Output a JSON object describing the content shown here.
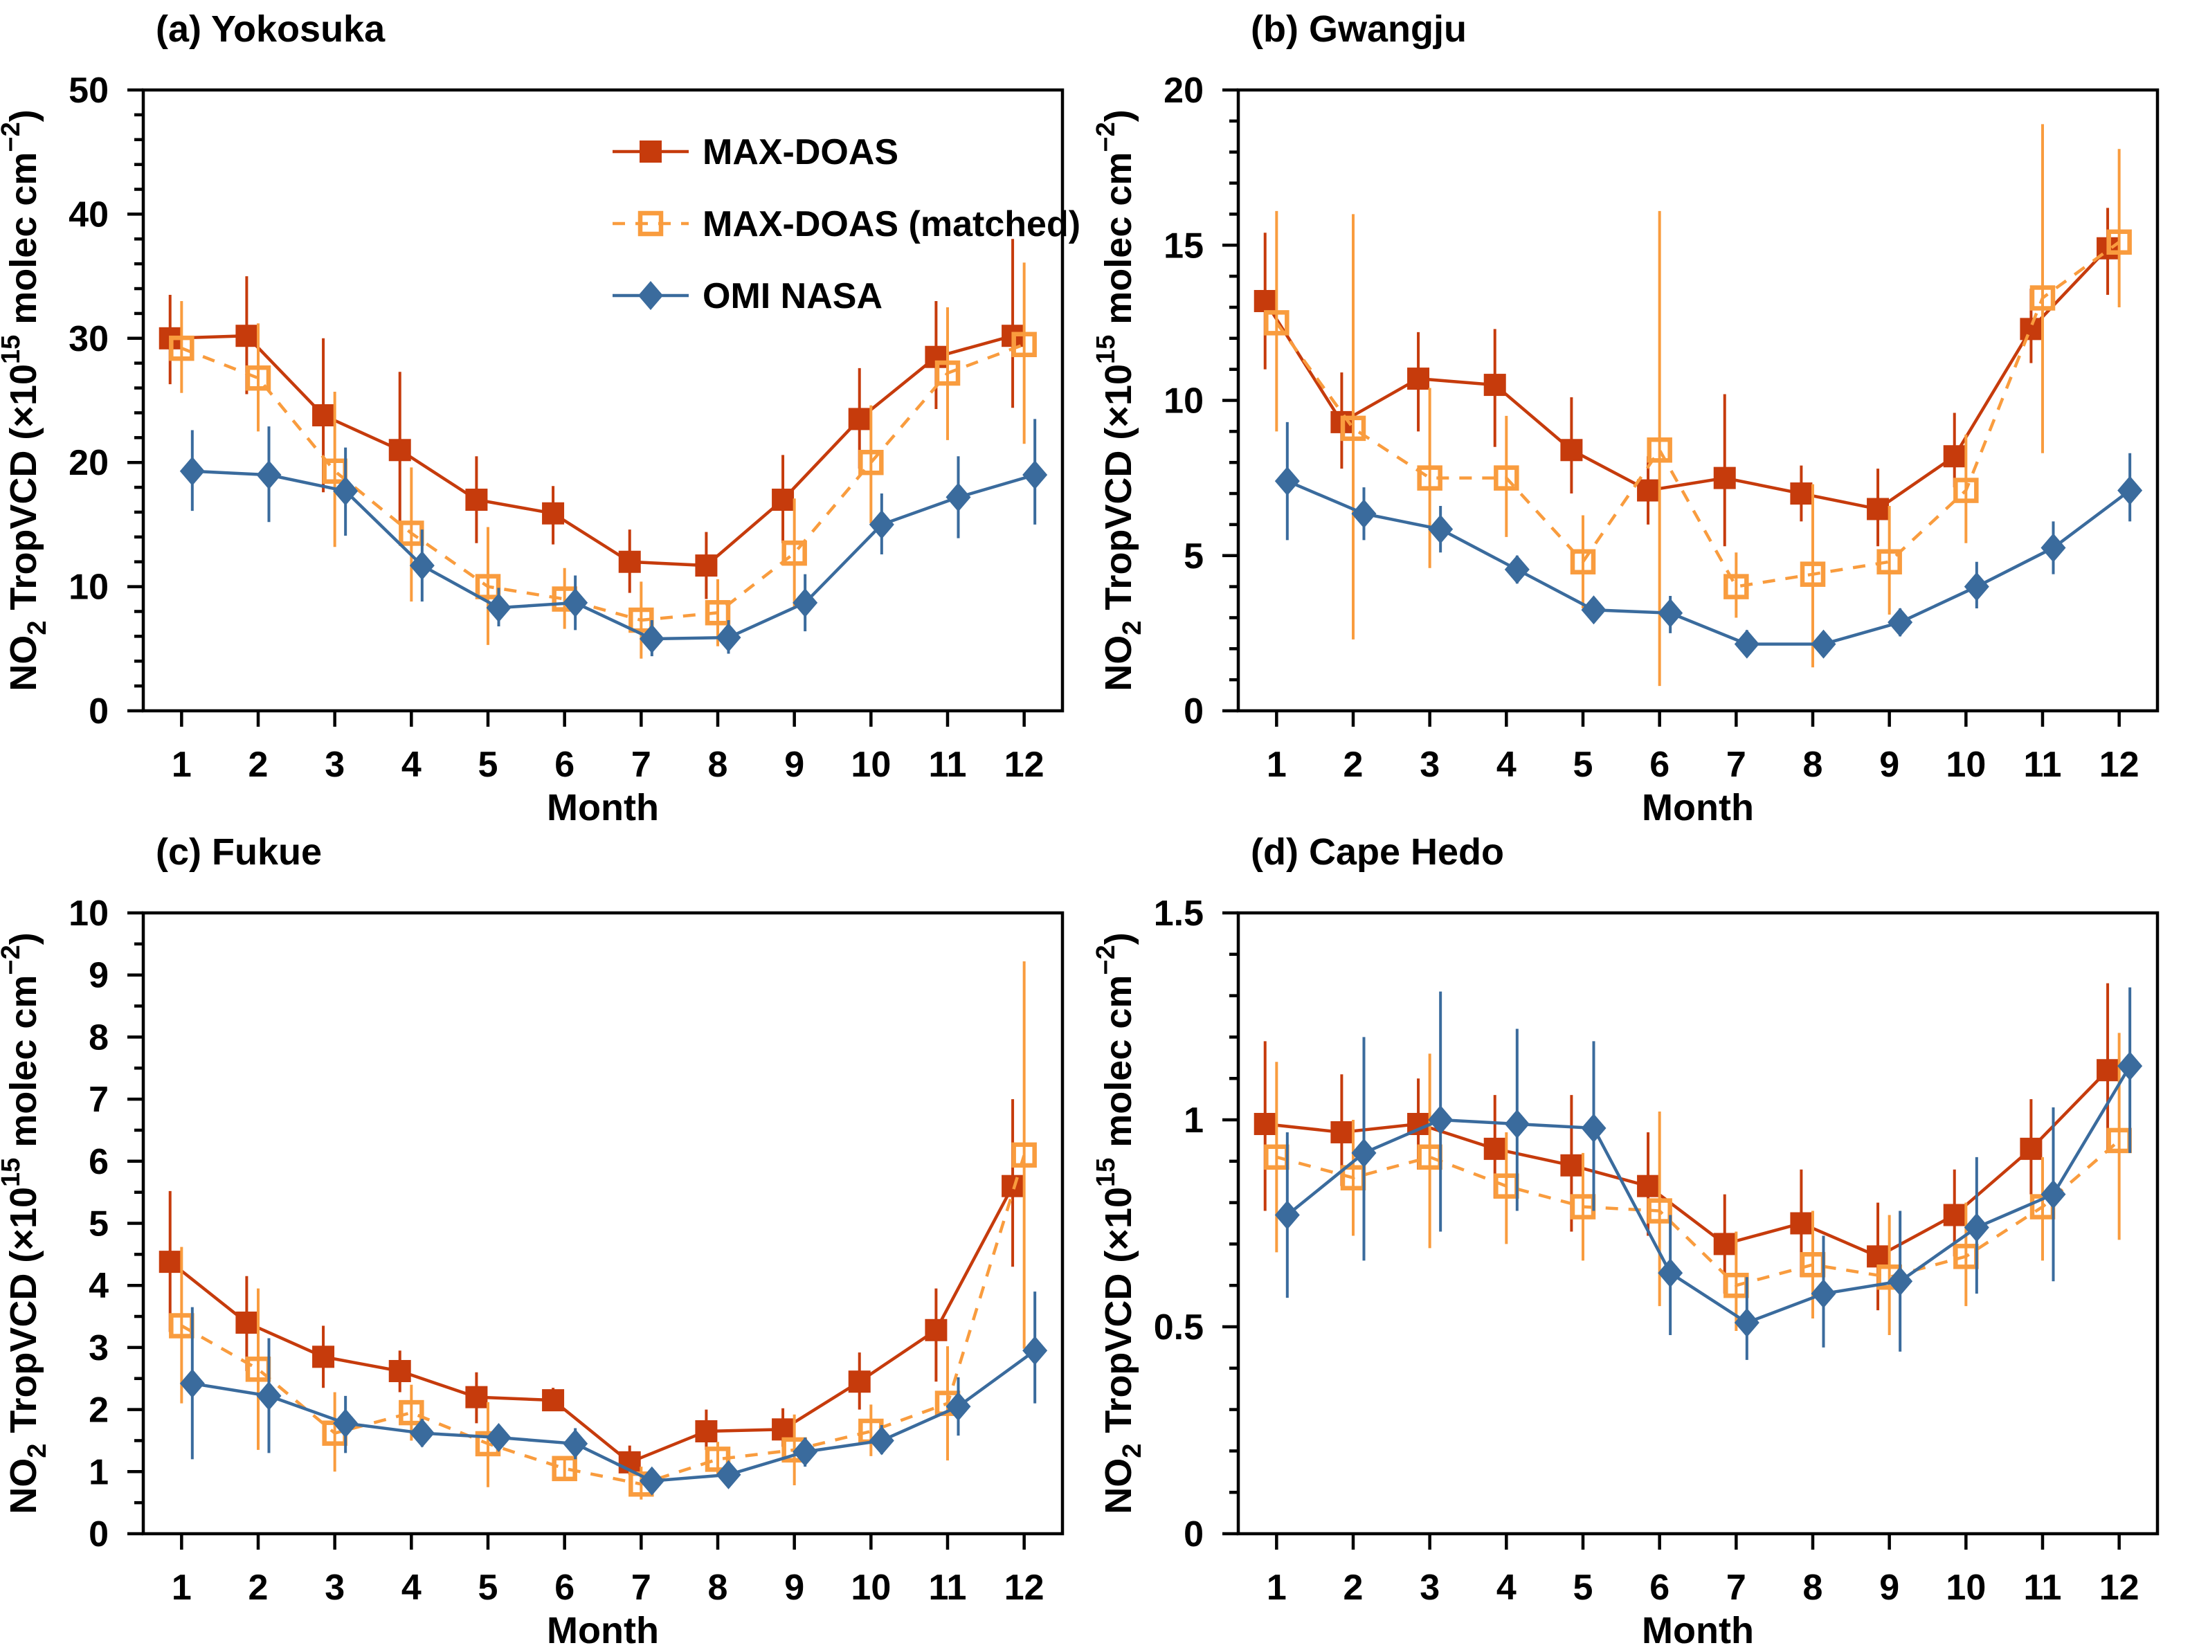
{
  "figure": {
    "xlabel": "Month",
    "ylabel_parts": [
      {
        "t": "NO"
      },
      {
        "t": "2",
        "s": "sub"
      },
      {
        "t": " TropVCD (×10",
        "s": ""
      },
      {
        "t": "15",
        "s": "sup"
      },
      {
        "t": " molec cm",
        "s": ""
      },
      {
        "t": "−2",
        "s": "sup"
      },
      {
        "t": ")",
        "s": ""
      }
    ]
  },
  "legend": {
    "items": [
      "MAX-DOAS",
      "MAX-DOAS (matched)",
      "OMI NASA"
    ]
  },
  "chart_data": {
    "type": "line",
    "x": [
      1,
      2,
      3,
      4,
      5,
      6,
      7,
      8,
      9,
      10,
      11,
      12
    ],
    "xlabel": "Month",
    "ylabel": "NO2 TropVCD (x10^15 molec cm^-2)",
    "legend_position": "top-left-inside-panel-a",
    "grid": false,
    "series_defs": [
      {
        "name": "MAX-DOAS",
        "color": "#c63b0c",
        "marker": "square-filled",
        "line": "solid",
        "offset": -0.15
      },
      {
        "name": "MAX-DOAS (matched)",
        "color": "#f99c3e",
        "marker": "square-open",
        "line": "dashed",
        "offset": 0
      },
      {
        "name": "OMI NASA",
        "color": "#3a6b9d",
        "marker": "diamond-filled",
        "line": "solid",
        "offset": 0.14
      }
    ],
    "panels": [
      {
        "key": "a",
        "title": "(a) Yokosuka",
        "ylim": [
          0,
          50
        ],
        "ymajor": 10,
        "yminor": 2,
        "legend": true,
        "series": [
          {
            "name": "MAX-DOAS",
            "values": [
              30.0,
              30.2,
              23.8,
              21.0,
              17.0,
              15.9,
              12.0,
              11.7,
              17.0,
              23.5,
              28.5,
              30.2
            ],
            "err_lo": [
              26.3,
              25.5,
              17.6,
              15.0,
              13.5,
              13.4,
              9.5,
              9.0,
              13.5,
              19.5,
              24.3,
              24.4
            ],
            "err_hi": [
              33.5,
              35.0,
              30.0,
              27.3,
              20.5,
              18.1,
              14.6,
              14.4,
              20.6,
              27.6,
              33.0,
              38.0
            ]
          },
          {
            "name": "MAX-DOAS (matched)",
            "values": [
              29.2,
              26.8,
              19.3,
              14.3,
              10.0,
              9.0,
              7.3,
              7.9,
              12.7,
              20.0,
              27.2,
              29.5
            ],
            "err_lo": [
              25.6,
              22.5,
              13.2,
              8.8,
              5.3,
              6.6,
              4.2,
              5.2,
              8.4,
              15.1,
              21.8,
              21.5
            ],
            "err_hi": [
              33.0,
              31.2,
              25.7,
              19.6,
              14.8,
              11.5,
              10.4,
              10.6,
              17.1,
              24.6,
              32.5,
              36.1
            ]
          },
          {
            "name": "OMI NASA",
            "values": [
              19.3,
              19.0,
              17.7,
              11.7,
              8.3,
              8.7,
              5.8,
              5.9,
              8.7,
              15.0,
              17.2,
              19.0
            ],
            "err_lo": [
              16.1,
              15.2,
              14.1,
              8.8,
              6.8,
              6.5,
              4.4,
              4.6,
              6.4,
              12.6,
              13.9,
              15.0
            ],
            "err_hi": [
              22.6,
              22.9,
              21.2,
              14.6,
              9.9,
              10.9,
              7.3,
              7.3,
              11.0,
              17.5,
              20.5,
              23.5
            ]
          }
        ]
      },
      {
        "key": "b",
        "title": "(b) Gwangju",
        "ylim": [
          0,
          20
        ],
        "ymajor": 5,
        "yminor": 1,
        "legend": false,
        "series": [
          {
            "name": "MAX-DOAS",
            "values": [
              13.2,
              9.3,
              10.7,
              10.5,
              8.4,
              7.1,
              7.5,
              7.0,
              6.5,
              8.2,
              12.3,
              14.9
            ],
            "err_lo": [
              11.0,
              7.8,
              9.0,
              8.5,
              7.0,
              6.0,
              5.3,
              6.1,
              5.3,
              7.2,
              11.2,
              13.4
            ],
            "err_hi": [
              15.4,
              10.9,
              12.2,
              12.3,
              10.1,
              8.2,
              10.2,
              7.9,
              7.8,
              9.6,
              13.6,
              16.2
            ]
          },
          {
            "name": "MAX-DOAS (matched)",
            "values": [
              12.5,
              9.1,
              7.5,
              7.5,
              4.8,
              8.4,
              4.0,
              4.4,
              4.8,
              7.1,
              13.3,
              15.1
            ],
            "err_lo": [
              9.0,
              2.3,
              4.6,
              5.6,
              3.3,
              0.8,
              3.0,
              1.4,
              3.1,
              5.4,
              8.3,
              13.0
            ],
            "err_hi": [
              16.1,
              16.0,
              10.4,
              9.5,
              6.3,
              16.1,
              5.1,
              7.3,
              6.6,
              8.9,
              18.9,
              18.1
            ]
          },
          {
            "name": "OMI NASA",
            "values": [
              7.4,
              6.35,
              5.85,
              4.55,
              3.25,
              3.15,
              2.15,
              2.15,
              2.85,
              4.0,
              5.25,
              7.1
            ],
            "err_lo": [
              5.5,
              5.5,
              5.1,
              4.1,
              2.9,
              2.5,
              1.8,
              1.8,
              2.4,
              3.3,
              4.4,
              6.1
            ],
            "err_hi": [
              9.3,
              7.2,
              6.6,
              5.0,
              3.6,
              3.7,
              2.6,
              2.5,
              3.3,
              4.8,
              6.1,
              8.3
            ]
          }
        ]
      },
      {
        "key": "c",
        "title": "(c) Fukue",
        "ylim": [
          0,
          10
        ],
        "ymajor": 1,
        "yminor": 0.5,
        "legend": false,
        "series": [
          {
            "name": "MAX-DOAS",
            "values": [
              4.38,
              3.4,
              2.85,
              2.62,
              2.2,
              2.15,
              1.15,
              1.65,
              1.68,
              2.45,
              3.28,
              5.6
            ],
            "err_lo": [
              3.25,
              2.62,
              2.35,
              2.28,
              1.78,
              1.98,
              0.95,
              1.35,
              1.4,
              2.0,
              2.45,
              4.3
            ],
            "err_hi": [
              5.52,
              4.15,
              3.35,
              2.95,
              2.6,
              2.35,
              1.42,
              2.0,
              2.02,
              2.92,
              3.95,
              7.0
            ]
          },
          {
            "name": "MAX-DOAS (matched)",
            "values": [
              3.35,
              2.65,
              1.62,
              1.95,
              1.45,
              1.05,
              0.8,
              1.2,
              1.35,
              1.65,
              2.1,
              6.1
            ],
            "err_lo": [
              2.1,
              1.35,
              1.0,
              1.5,
              0.75,
              0.88,
              0.55,
              0.95,
              0.78,
              1.25,
              1.18,
              2.98
            ],
            "err_hi": [
              4.62,
              3.95,
              2.28,
              2.4,
              2.12,
              1.22,
              1.08,
              1.48,
              1.92,
              2.08,
              3.02,
              9.22
            ]
          },
          {
            "name": "OMI NASA",
            "values": [
              2.42,
              2.22,
              1.78,
              1.62,
              1.55,
              1.45,
              0.85,
              0.95,
              1.32,
              1.5,
              2.05,
              2.95
            ],
            "err_lo": [
              1.2,
              1.3,
              1.3,
              1.4,
              1.4,
              1.2,
              0.72,
              0.78,
              1.08,
              1.28,
              1.58,
              2.1
            ],
            "err_hi": [
              3.65,
              3.15,
              2.22,
              1.85,
              1.72,
              1.7,
              1.0,
              1.12,
              1.55,
              1.75,
              2.52,
              3.9
            ]
          }
        ]
      },
      {
        "key": "d",
        "title": "(d) Cape Hedo",
        "ylim": [
          0,
          1.5
        ],
        "ymajor": 0.5,
        "yminor": 0.1,
        "legend": false,
        "series": [
          {
            "name": "MAX-DOAS",
            "values": [
              0.99,
              0.97,
              0.99,
              0.93,
              0.89,
              0.84,
              0.7,
              0.75,
              0.67,
              0.77,
              0.93,
              1.12
            ],
            "err_lo": [
              0.78,
              0.84,
              0.88,
              0.81,
              0.73,
              0.72,
              0.58,
              0.62,
              0.54,
              0.67,
              0.82,
              0.92
            ],
            "err_hi": [
              1.19,
              1.11,
              1.1,
              1.06,
              1.06,
              0.97,
              0.82,
              0.88,
              0.8,
              0.88,
              1.05,
              1.33
            ]
          },
          {
            "name": "MAX-DOAS (matched)",
            "values": [
              0.91,
              0.86,
              0.91,
              0.84,
              0.79,
              0.78,
              0.6,
              0.65,
              0.62,
              0.67,
              0.79,
              0.95
            ],
            "err_lo": [
              0.68,
              0.72,
              0.69,
              0.7,
              0.66,
              0.55,
              0.49,
              0.52,
              0.48,
              0.55,
              0.66,
              0.71
            ],
            "err_hi": [
              1.14,
              1.0,
              1.16,
              0.97,
              0.92,
              1.02,
              0.73,
              0.78,
              0.77,
              0.8,
              0.91,
              1.21
            ]
          },
          {
            "name": "OMI NASA",
            "values": [
              0.77,
              0.92,
              1.0,
              0.99,
              0.98,
              0.63,
              0.51,
              0.58,
              0.61,
              0.74,
              0.82,
              1.13
            ],
            "err_lo": [
              0.57,
              0.66,
              0.73,
              0.78,
              0.78,
              0.48,
              0.42,
              0.45,
              0.44,
              0.58,
              0.61,
              0.92
            ],
            "err_hi": [
              0.97,
              1.2,
              1.31,
              1.22,
              1.19,
              0.77,
              0.62,
              0.72,
              0.78,
              0.91,
              1.03,
              1.32
            ]
          }
        ]
      }
    ]
  }
}
